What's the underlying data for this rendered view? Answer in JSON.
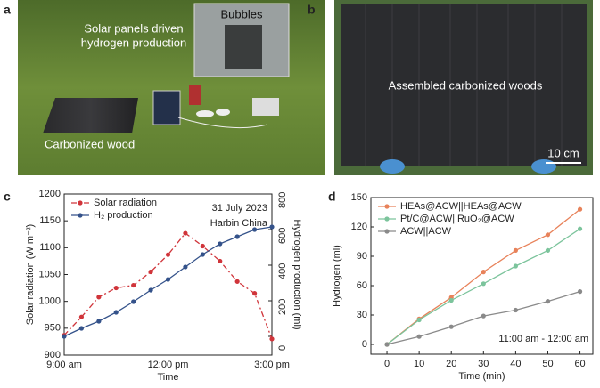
{
  "panel_labels": [
    "a",
    "b",
    "c",
    "d"
  ],
  "photo_a": {
    "title": [
      "Solar panels driven",
      "hydrogen production"
    ],
    "inset": "Bubbles",
    "label": "Carbonized wood"
  },
  "photo_b": {
    "label": "Assembled carbonized woods",
    "scale": "10 cm"
  },
  "chart_data": [
    {
      "type": "line",
      "x": [
        9,
        9.5,
        10,
        10.5,
        11,
        11.5,
        12,
        12.5,
        13,
        13.5,
        14,
        14.5,
        15
      ],
      "xlim": [
        9,
        15
      ],
      "xticks": [
        {
          "value": 9,
          "label": "9:00 am"
        },
        {
          "value": 12,
          "label": "12:00 pm"
        },
        {
          "value": 15,
          "label": "3:00 pm"
        }
      ],
      "xlabel": "Time",
      "ylabel": "Solar radiation (W m⁻²)",
      "y2label": "Hydrogen production (ml)",
      "ylim": [
        900,
        1200
      ],
      "yticks": [
        900,
        950,
        1000,
        1050,
        1100,
        1150,
        1200
      ],
      "y2lim": [
        -105,
        800
      ],
      "y2ticks": [
        0,
        200,
        400,
        600,
        800
      ],
      "annotations": [
        "31 July 2023",
        "Harbin China"
      ],
      "legend": "upper left",
      "series": [
        {
          "name": "Solar radiation",
          "color": "#d0343a",
          "style": "dash-dot",
          "values": [
            937,
            971,
            1008,
            1025,
            1030,
            1055,
            1087,
            1127,
            1103,
            1075,
            1037,
            1015,
            930
          ]
        },
        {
          "name": "H₂ production",
          "color": "#34528a",
          "style": "solid",
          "axis": "y2",
          "values": [
            0,
            45,
            85,
            135,
            195,
            260,
            320,
            390,
            460,
            520,
            560,
            600,
            615
          ]
        }
      ]
    },
    {
      "type": "line",
      "x": [
        0,
        10,
        20,
        30,
        40,
        50,
        60
      ],
      "xlim": [
        -5,
        64
      ],
      "xticks": [
        0,
        10,
        20,
        30,
        40,
        50,
        60
      ],
      "xlabel": "Time (min)",
      "ylabel": "Hydrogen (ml)",
      "ylim": [
        -10,
        150
      ],
      "yticks": [
        0,
        30,
        60,
        90,
        120,
        150
      ],
      "annotations": [
        "11:00 am - 12:00 am"
      ],
      "legend": "upper left",
      "series": [
        {
          "name": "HEAs@ACW||HEAs@ACW",
          "color": "#e8825a",
          "style": "solid",
          "values": [
            0,
            26,
            48,
            74,
            96,
            112,
            138
          ]
        },
        {
          "name": "Pt/C@ACW||RuO₂@ACW",
          "color": "#7cc49c",
          "style": "solid",
          "values": [
            0,
            25,
            45,
            62,
            80,
            96,
            118
          ]
        },
        {
          "name": "ACW||ACW",
          "color": "#8a8a8a",
          "style": "solid",
          "values": [
            0,
            8,
            18,
            29,
            35,
            44,
            54
          ]
        }
      ]
    }
  ]
}
